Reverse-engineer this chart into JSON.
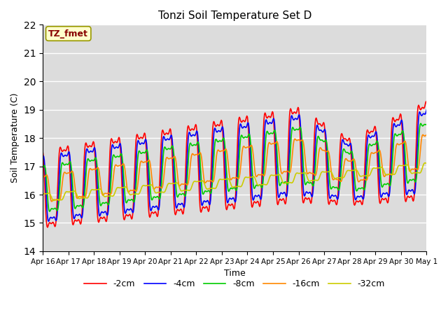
{
  "title": "Tonzi Soil Temperature Set D",
  "xlabel": "Time",
  "ylabel": "Soil Temperature (C)",
  "ylim": [
    14.0,
    22.0
  ],
  "yticks": [
    14.0,
    15.0,
    16.0,
    17.0,
    18.0,
    19.0,
    20.0,
    21.0,
    22.0
  ],
  "xtick_labels": [
    "Apr 16",
    "Apr 17",
    "Apr 18",
    "Apr 19",
    "Apr 20",
    "Apr 21",
    "Apr 22",
    "Apr 23",
    "Apr 24",
    "Apr 25",
    "Apr 26",
    "Apr 27",
    "Apr 28",
    "Apr 29",
    "Apr 30",
    "May 1"
  ],
  "colors": {
    "-2cm": "#ff0000",
    "-4cm": "#0000ff",
    "-8cm": "#00cc00",
    "-16cm": "#ff8800",
    "-32cm": "#cccc00"
  },
  "legend_label": "TZ_fmet",
  "annotation_box_color": "#ffffcc",
  "annotation_text_color": "#880000",
  "annotation_edge_color": "#999900",
  "bg_color": "#dcdcdc",
  "fig_bg_color": "#ffffff",
  "linewidth": 1.2
}
